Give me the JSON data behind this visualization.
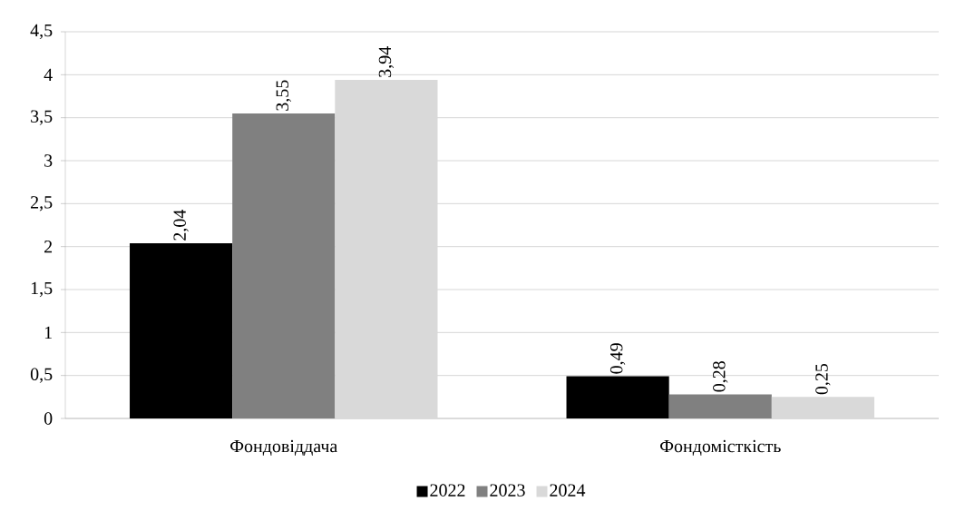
{
  "chart_data": {
    "type": "bar",
    "categories": [
      "Фондовіддача",
      "Фондомісткість"
    ],
    "series": [
      {
        "name": "2022",
        "color": "#000000",
        "values": [
          2.04,
          0.49
        ],
        "value_labels": [
          "2,04",
          "0,49"
        ]
      },
      {
        "name": "2023",
        "color": "#808080",
        "values": [
          3.55,
          0.28
        ],
        "value_labels": [
          "3,55",
          "0,28"
        ]
      },
      {
        "name": "2024",
        "color": "#d9d9d9",
        "values": [
          3.94,
          0.25
        ],
        "value_labels": [
          "3,94",
          "0,25"
        ]
      }
    ],
    "ylim": [
      0,
      4.5
    ],
    "yticks": [
      0,
      {
        "value": 0.5,
        "label": "0,5"
      },
      1,
      {
        "value": 1.5,
        "label": "1,5"
      },
      2,
      {
        "value": 2.5,
        "label": "2,5"
      },
      3,
      {
        "value": 3.5,
        "label": "3,5"
      },
      4,
      {
        "value": 4.5,
        "label": "4,5"
      }
    ],
    "grid": "y",
    "legend": "bottom"
  }
}
